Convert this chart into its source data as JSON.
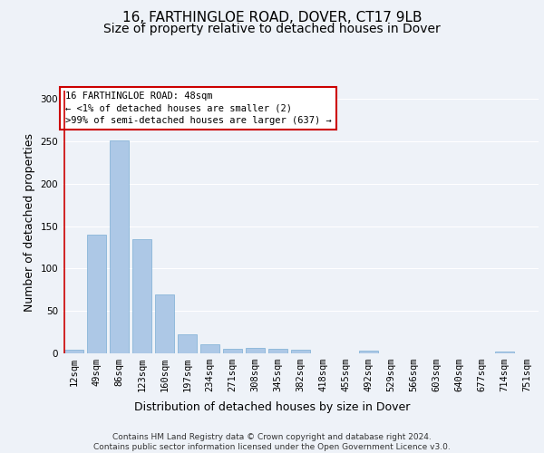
{
  "title_line1": "16, FARTHINGLOE ROAD, DOVER, CT17 9LB",
  "title_line2": "Size of property relative to detached houses in Dover",
  "xlabel": "Distribution of detached houses by size in Dover",
  "ylabel": "Number of detached properties",
  "categories": [
    "12sqm",
    "49sqm",
    "86sqm",
    "123sqm",
    "160sqm",
    "197sqm",
    "234sqm",
    "271sqm",
    "308sqm",
    "345sqm",
    "382sqm",
    "418sqm",
    "455sqm",
    "492sqm",
    "529sqm",
    "566sqm",
    "603sqm",
    "640sqm",
    "677sqm",
    "714sqm",
    "751sqm"
  ],
  "values": [
    4,
    140,
    251,
    135,
    70,
    22,
    11,
    5,
    6,
    5,
    4,
    0,
    0,
    3,
    0,
    0,
    0,
    0,
    0,
    2,
    0
  ],
  "bar_color": "#adc8e6",
  "bar_edge_color": "#7aadd4",
  "annotation_text": "16 FARTHINGLOE ROAD: 48sqm\n← <1% of detached houses are smaller (2)\n>99% of semi-detached houses are larger (637) →",
  "annotation_box_color": "#cc0000",
  "ylim": [
    0,
    310
  ],
  "yticks": [
    0,
    50,
    100,
    150,
    200,
    250,
    300
  ],
  "background_color": "#eef2f8",
  "footer_text": "Contains HM Land Registry data © Crown copyright and database right 2024.\nContains public sector information licensed under the Open Government Licence v3.0.",
  "grid_color": "#ffffff",
  "title_fontsize": 11,
  "subtitle_fontsize": 10,
  "label_fontsize": 9,
  "tick_fontsize": 7.5,
  "footer_fontsize": 6.5
}
